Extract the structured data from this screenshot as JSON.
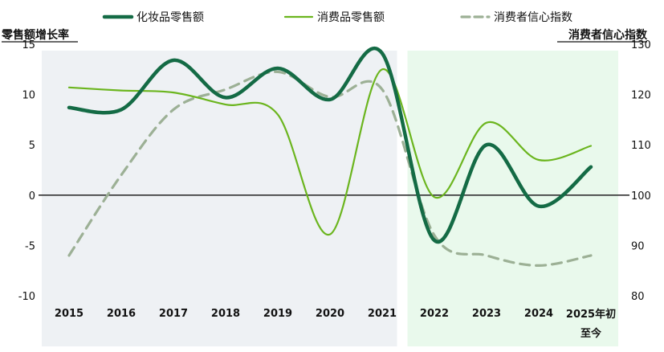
{
  "chart_data": {
    "type": "line",
    "title": "",
    "y_left_label": "零售额增长率",
    "y_right_label": "消费者信心指数",
    "x_categories": [
      "2015",
      "2016",
      "2017",
      "2018",
      "2019",
      "2020",
      "2021",
      "2022",
      "2023",
      "2024",
      "2025年初至今"
    ],
    "y_left_ticks": [
      "15",
      "10",
      "5",
      "0",
      "-5",
      "-10"
    ],
    "y_right_ticks": [
      "130",
      "120",
      "110",
      "100",
      "90",
      "80"
    ],
    "y_left_range": [
      -10,
      15
    ],
    "y_right_range": [
      80,
      130
    ],
    "legend_position": "top",
    "shaded_regions": [
      {
        "from": "2015",
        "to": "2021",
        "color": "#eef1f4"
      },
      {
        "from": "2022",
        "to": "2025年初至今",
        "color": "#e9f9ec"
      }
    ],
    "series": [
      {
        "name": "化妆品零售额",
        "axis": "left",
        "color": "#146b45",
        "style": "solid-thick",
        "values": [
          8.7,
          8.5,
          13.4,
          9.7,
          12.6,
          9.5,
          14.1,
          -4.5,
          5.0,
          -1.1,
          2.8
        ]
      },
      {
        "name": "消费品零售额",
        "axis": "left",
        "color": "#6bb51e",
        "style": "solid-thin",
        "values": [
          10.7,
          10.4,
          10.2,
          9.0,
          8.0,
          -3.9,
          12.5,
          -0.2,
          7.2,
          3.5,
          4.9
        ]
      },
      {
        "name": "消费者信心指数",
        "axis": "right",
        "color": "#9cb095",
        "style": "dashed",
        "values": [
          88.0,
          104.0,
          117.0,
          121.0,
          124.5,
          119.5,
          121.0,
          92.0,
          88.0,
          86.0,
          88.0
        ]
      }
    ]
  }
}
